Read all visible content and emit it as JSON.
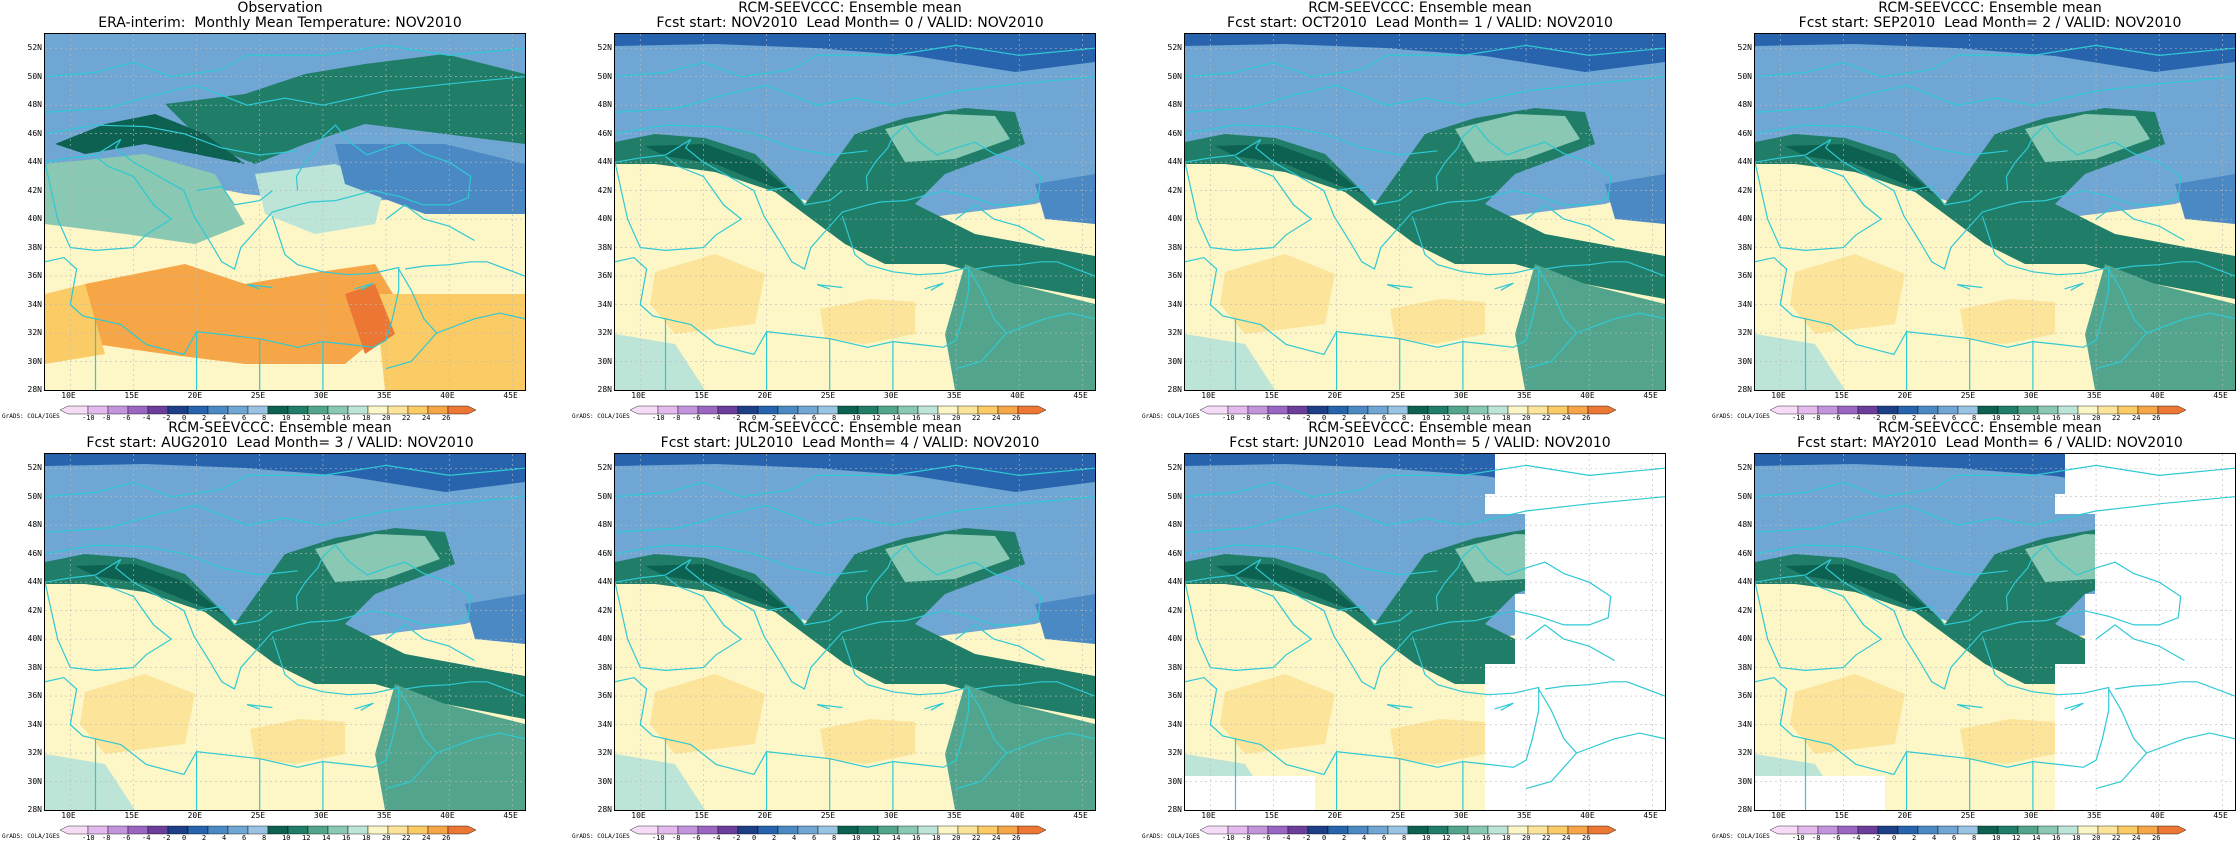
{
  "y_ticks": [
    "52N",
    "50N",
    "48N",
    "46N",
    "44N",
    "42N",
    "40N",
    "38N",
    "36N",
    "34N",
    "32N",
    "30N",
    "28N"
  ],
  "x_ticks": [
    "10E",
    "15E",
    "20E",
    "25E",
    "30E",
    "35E",
    "40E",
    "45E"
  ],
  "colorbar": {
    "labels": [
      "-10",
      "-8",
      "-6",
      "-4",
      "-2",
      "0",
      "2",
      "4",
      "6",
      "8",
      "10",
      "12",
      "14",
      "16",
      "18",
      "20",
      "22",
      "24",
      "26"
    ],
    "colors": [
      "#f6dcf6",
      "#e3b9ee",
      "#c294dc",
      "#9a66c2",
      "#6b3e9b",
      "#1d3f88",
      "#2864ad",
      "#4a89c4",
      "#6fa6d3",
      "#98c3e3",
      "#0d6151",
      "#1f7d68",
      "#52a58c",
      "#89c8b2",
      "#bce5d8",
      "#fbf6c8",
      "#fce59a",
      "#fbcb65",
      "#f6a646",
      "#ec7634"
    ]
  },
  "credit": "GrADS: COLA/IGES",
  "panels": [
    {
      "title1": "Observation",
      "title2": "ERA-interim:  Monthly Mean Temperature: NOV2010",
      "variant": "obs"
    },
    {
      "title1": "RCM-SEEVCCC: Ensemble mean",
      "title2": "Fcst start: NOV2010  Lead Month= 0 / VALID: NOV2010",
      "variant": "fcst"
    },
    {
      "title1": "RCM-SEEVCCC: Ensemble mean",
      "title2": "Fcst start: OCT2010  Lead Month= 1 / VALID: NOV2010",
      "variant": "fcst"
    },
    {
      "title1": "RCM-SEEVCCC: Ensemble mean",
      "title2": "Fcst start: SEP2010  Lead Month= 2 / VALID: NOV2010",
      "variant": "fcst"
    },
    {
      "title1": "RCM-SEEVCCC: Ensemble mean",
      "title2": "Fcst start: AUG2010  Lead Month= 3 / VALID: NOV2010",
      "variant": "fcst"
    },
    {
      "title1": "RCM-SEEVCCC: Ensemble mean",
      "title2": "Fcst start: JUL2010  Lead Month= 4 / VALID: NOV2010",
      "variant": "fcst"
    },
    {
      "title1": "RCM-SEEVCCC: Ensemble mean",
      "title2": "Fcst start: JUN2010  Lead Month= 5 / VALID: NOV2010",
      "variant": "fcst_mask"
    },
    {
      "title1": "RCM-SEEVCCC: Ensemble mean",
      "title2": "Fcst start: MAY2010  Lead Month= 6 / VALID: NOV2010",
      "variant": "fcst_mask"
    }
  ]
}
